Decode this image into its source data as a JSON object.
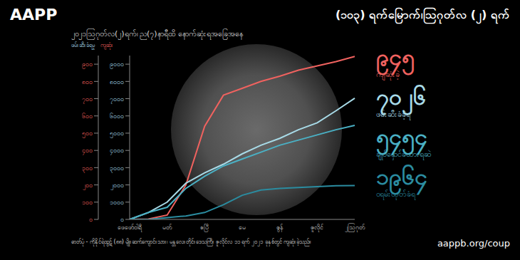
{
  "chart_data": {
    "type": "line",
    "logo": "AAPP",
    "title": "(၁၀၃) ရက်မြောက်၊ဩဂုတ်လ (၂) ရက်",
    "subtitle": "၂၀၂၁ဩဂုတ်လ(၂)ရက်၊ ည(၇)နာရီထိ နောက်ဆုံးရအခြေအနေ",
    "y_label": "ဖမ်းဆီးခံရမှု",
    "y2_label": "ကျဆုံး",
    "categories": [
      "ဖေဖော်ဝါရီ",
      null,
      "မတ်",
      null,
      "ဧပြီ",
      null,
      "မေ",
      null,
      "ဇွန်",
      null,
      "ဇူလိုင်",
      null,
      "၂ဩဂုတ်"
    ],
    "series": [
      {
        "name": "ကျဆုံးခဲ့",
        "color": "#f0625f",
        "axis": "y2",
        "values": [
          0,
          2,
          25,
          200,
          540,
          720,
          760,
          800,
          830,
          865,
          890,
          915,
          945
        ]
      },
      {
        "name": "ဖမ်းဆီးခံခဲ့ရ",
        "color": "#a8dbe8",
        "values": [
          0,
          400,
          1000,
          2100,
          2700,
          3200,
          3800,
          4300,
          4700,
          5200,
          5600,
          6300,
          7026
        ]
      },
      {
        "name": "ချုပ်နှောင်ခံထားရဆဲ",
        "color": "#4ab0c4",
        "values": [
          0,
          400,
          700,
          1800,
          2500,
          3100,
          3500,
          3900,
          4300,
          4600,
          4900,
          5200,
          5454
        ]
      },
      {
        "name": "ဝရမ်းထုတ်ခံရ",
        "color": "#2b8ca0",
        "values": [
          0,
          0,
          100,
          200,
          400,
          850,
          1400,
          1700,
          1800,
          1850,
          1900,
          1950,
          1964
        ]
      }
    ],
    "ylim": [
      0,
      9500
    ],
    "yticks": [
      {
        "value": 0,
        "label": "၀"
      },
      {
        "value": 1000,
        "label": "၁၀၀၀"
      },
      {
        "value": 2000,
        "label": "၂၀၀၀"
      },
      {
        "value": 3000,
        "label": "၃၀၀၀"
      },
      {
        "value": 4000,
        "label": "၄၀၀၀"
      },
      {
        "value": 5000,
        "label": "၅၀၀၀"
      },
      {
        "value": 6000,
        "label": "၆၀၀၀"
      },
      {
        "value": 7000,
        "label": "၇၀၀၀"
      },
      {
        "value": 8000,
        "label": "၈၀၀၀"
      },
      {
        "value": 9000,
        "label": "၉၀၀၀"
      }
    ],
    "y2lim": [
      0,
      950
    ],
    "y2ticks": [
      {
        "value": 0,
        "label": "၀"
      },
      {
        "value": 100,
        "label": "၁၀၀"
      },
      {
        "value": 200,
        "label": "၂၀၀"
      },
      {
        "value": 300,
        "label": "၃၀၀"
      },
      {
        "value": 400,
        "label": "၄၀၀"
      },
      {
        "value": 500,
        "label": "၅၀၀"
      },
      {
        "value": 600,
        "label": "၆၀၀"
      },
      {
        "value": 700,
        "label": "၇၀၀"
      },
      {
        "value": 800,
        "label": "၈၀၀"
      },
      {
        "value": 900,
        "label": "၉၀၀"
      }
    ],
    "grid": false,
    "annotations": [
      {
        "text": "၉၄၅",
        "label": "ကျဆုံးခဲ့",
        "color": "#f0625f"
      },
      {
        "text": "၇၀၂၆",
        "label": "ဖမ်းဆီးခံခဲ့ရ",
        "color": "#a8dbe8"
      },
      {
        "text": "၅၄၅၄",
        "label": "ချုပ်နှောင်ခံထားရဆဲ",
        "color": "#4ab0c4"
      },
      {
        "text": "၁၉၆၄",
        "label": "ဝရမ်းထုတ်ခံရ",
        "color": "#2b8ca0"
      }
    ],
    "caption": "ဓာတ်ပုံ - ကိုနိုင်ရဲထွဋ် (၈၈) မျိုးဆက်ကျောင်းသား၊ မန္တလေးတိုင်းဒေသကြီး ဇူလိုင်လ ၁၁ ရက် ၂၀၂၁ ခုနှစ်တွင် ကျဆုံးခဲ့သည်။",
    "url": "aappb.org/coup"
  }
}
